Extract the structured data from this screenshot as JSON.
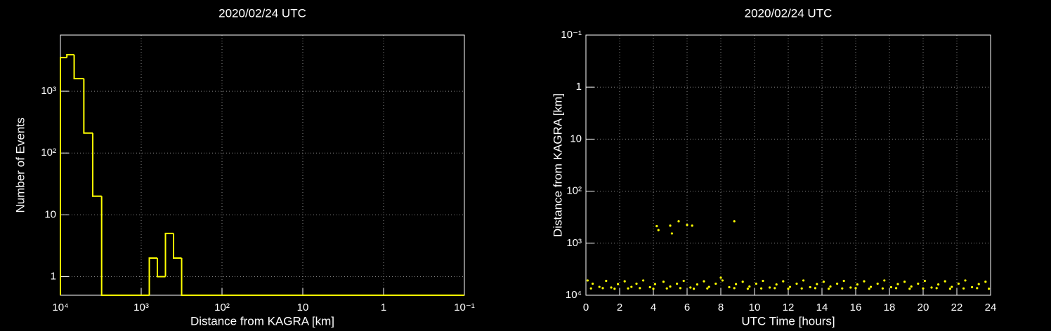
{
  "chart_data": [
    {
      "type": "histogram",
      "title": "2020/02/24 UTC",
      "x_label": "Distance from KAGRA [km]",
      "y_label": "Number of Events",
      "bins": [
        10000,
        8318,
        6761,
        5129,
        3981,
        3090,
        794,
        631,
        501,
        398,
        316,
        0.1
      ],
      "values": [
        3500,
        3900,
        1600,
        210,
        20,
        0,
        2,
        1,
        5,
        2,
        0
      ],
      "color": "#ffff00",
      "x_log": true,
      "y_log": true,
      "grid": true,
      "xlim": [
        10000,
        0.1
      ],
      "xticks": [
        {
          "value": 10000,
          "label": "10⁴"
        },
        {
          "value": 1000,
          "label": "10³"
        },
        {
          "value": 100,
          "label": "10²"
        },
        10,
        1,
        {
          "value": 0.1,
          "label": "10⁻¹"
        }
      ],
      "ylim": [
        0.5,
        8100
      ],
      "yticks": [
        1,
        10,
        {
          "value": 100,
          "label": "10²"
        },
        {
          "value": 1000,
          "label": "10³"
        }
      ]
    },
    {
      "type": "scatter",
      "title": "2020/02/24 UTC",
      "x_label": "UTC Time [hours]",
      "y_label": "Distance from KAGRA [km]",
      "color": "#ffff00",
      "y_log": true,
      "grid": true,
      "x": [
        4.2,
        4.3,
        5.0,
        5.1,
        5.5,
        6.0,
        6.3,
        8.8,
        0.1,
        0.4,
        0.8,
        1.2,
        1.5,
        1.9,
        2.3,
        2.7,
        3.0,
        3.4,
        3.8,
        4.1,
        4.6,
        5.0,
        5.4,
        5.8,
        6.2,
        6.6,
        7.0,
        7.3,
        7.7,
        8.1,
        8.5,
        8.9,
        9.3,
        9.7,
        10.1,
        10.5,
        10.9,
        11.3,
        11.7,
        12.1,
        12.5,
        12.9,
        13.3,
        13.7,
        14.1,
        14.5,
        14.9,
        15.3,
        15.7,
        16.1,
        16.5,
        16.9,
        17.3,
        17.7,
        18.1,
        18.5,
        18.9,
        19.3,
        19.7,
        20.1,
        20.5,
        20.9,
        21.3,
        21.7,
        22.1,
        22.5,
        22.9,
        23.3,
        23.7,
        0.3,
        1.0,
        1.7,
        2.5,
        3.2,
        4.0,
        4.8,
        5.6,
        6.4,
        7.2,
        8.0,
        8.8,
        9.6,
        10.4,
        11.2,
        12.0,
        12.8,
        13.6,
        14.4,
        15.2,
        16.0,
        16.8,
        17.6,
        18.4,
        19.2,
        20.0,
        20.8,
        21.6,
        22.4,
        23.2,
        23.9
      ],
      "y": [
        470,
        560,
        460,
        650,
        380,
        445,
        460,
        380,
        5200,
        6000,
        6900,
        5300,
        7100,
        6100,
        5400,
        6900,
        6000,
        5200,
        7000,
        6100,
        5500,
        6800,
        6000,
        5300,
        7100,
        6200,
        5400,
        6900,
        6000,
        5200,
        7000,
        6100,
        5500,
        6800,
        6000,
        5300,
        7100,
        6200,
        5400,
        6900,
        6000,
        5200,
        7000,
        6100,
        5500,
        6800,
        6000,
        5300,
        7100,
        6200,
        5400,
        6900,
        6000,
        5200,
        7000,
        6100,
        5500,
        6800,
        6000,
        5300,
        7100,
        6200,
        5400,
        6900,
        6000,
        5200,
        7000,
        6100,
        5500,
        7400,
        7300,
        7500,
        7400,
        7300,
        7500,
        7400,
        7300,
        7500,
        7400,
        4600,
        7300,
        7500,
        7400,
        7300,
        7500,
        7400,
        7300,
        7500,
        7400,
        7300,
        7500,
        7400,
        7300,
        7500,
        7400,
        7300,
        7500,
        7400,
        7300,
        7500
      ],
      "xlim": [
        0,
        24
      ],
      "xticks": [
        0,
        2,
        4,
        6,
        8,
        10,
        12,
        14,
        16,
        18,
        20,
        22,
        24
      ],
      "ylim": [
        10000,
        0.1
      ],
      "yticks": [
        {
          "value": 0.1,
          "label": "10⁻¹"
        },
        1,
        10,
        {
          "value": 100,
          "label": "10²"
        },
        {
          "value": 1000,
          "label": "10³"
        },
        {
          "value": 10000,
          "label": "10⁴"
        }
      ]
    }
  ]
}
